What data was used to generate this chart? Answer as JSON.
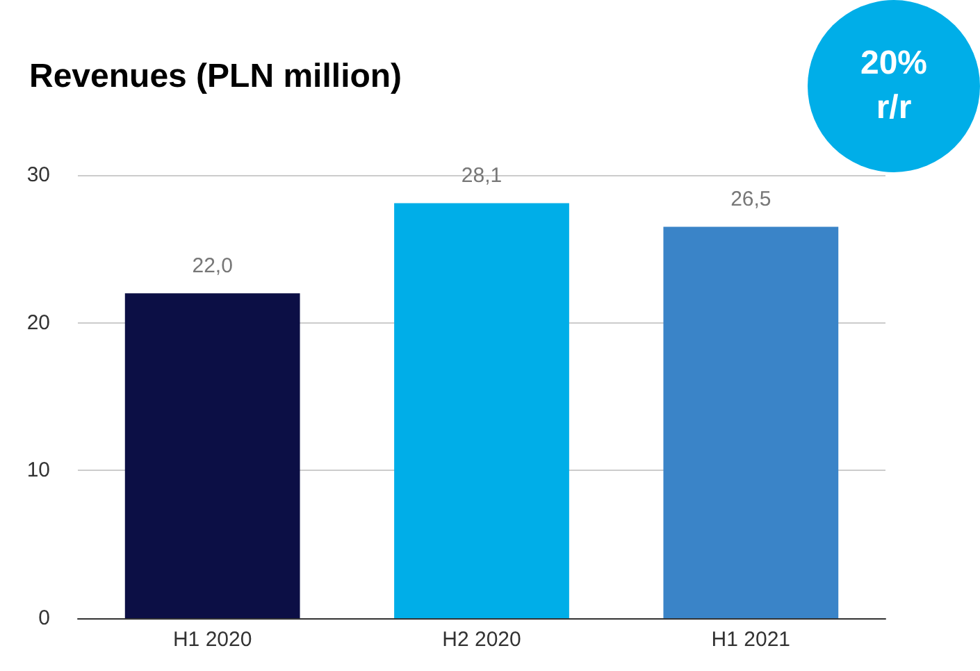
{
  "chart_data": {
    "type": "bar",
    "title": "Revenues (PLN million)",
    "categories": [
      "H1 2020",
      "H2 2020",
      "H1 2021"
    ],
    "values": [
      22.0,
      28.1,
      26.5
    ],
    "colors": [
      "#0c0f45",
      "#00aee8",
      "#3a84c8"
    ],
    "value_labels": [
      "22,0",
      "28,1",
      "26,5"
    ],
    "ylim": [
      0,
      30
    ],
    "yticks": [
      0,
      10,
      20,
      30
    ],
    "grid": "y",
    "annotations": [
      "20% r/r"
    ]
  }
}
